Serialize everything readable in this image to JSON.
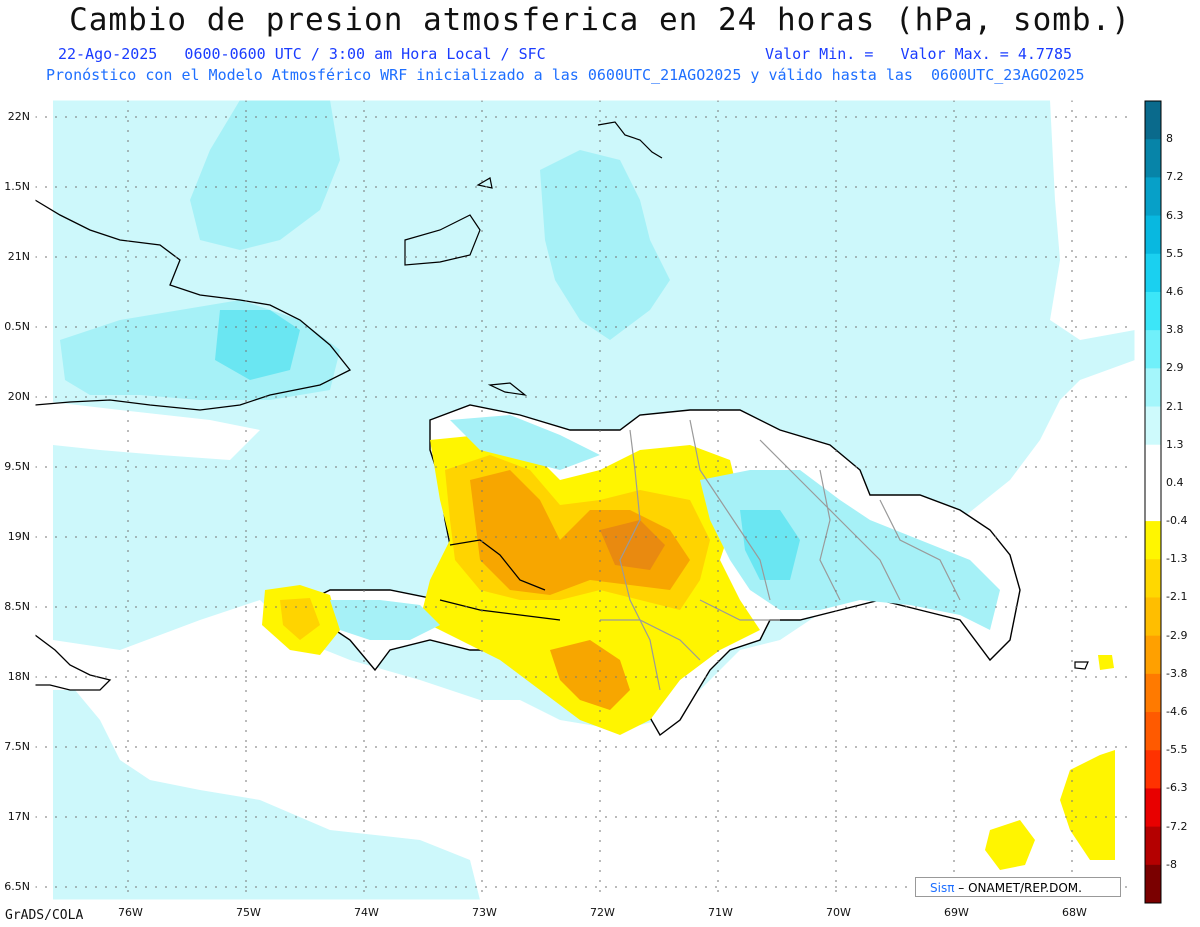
{
  "title": "Cambio de presion atmosferica en 24 horas (hPa, somb.)",
  "subtitle_line1": "22-Ago-2025   0600-0600 UTC / 3:00 am Hora Local / SFC",
  "subtitle_values": "Valor Min. =   Valor Max. = 4.7785",
  "subtitle_line2": "Pronóstico con el Modelo Atmosférico WRF inicializado a las 0600UTC_21AGO2025 y válido hasta las  0600UTC_23AGO2025",
  "lat_labels": [
    "22N",
    "1.5N",
    "21N",
    "0.5N",
    "20N",
    "9.5N",
    "19N",
    "8.5N",
    "18N",
    "7.5N",
    "17N",
    "6.5N"
  ],
  "lon_labels": [
    "76W",
    "75W",
    "74W",
    "73W",
    "72W",
    "71W",
    "70W",
    "69W",
    "68W"
  ],
  "colorbar": {
    "labels": [
      "8",
      "7.2",
      "6.3",
      "5.5",
      "4.6",
      "3.8",
      "2.9",
      "2.1",
      "1.3",
      "0.4",
      "-0.4",
      "-1.3",
      "-2.1",
      "-2.9",
      "-3.8",
      "-4.6",
      "-5.5",
      "-6.3",
      "-7.2",
      "-8"
    ],
    "colors": [
      "#0a6a8c",
      "#0784a8",
      "#07a0c8",
      "#08b8e0",
      "#1ad0f0",
      "#3ce6f8",
      "#70f0fa",
      "#a4f6fb",
      "#cefafc",
      "#ffffff",
      "#ffffff",
      "#fff600",
      "#ffd800",
      "#ffbe00",
      "#ffa000",
      "#ff7a00",
      "#ff5a00",
      "#ff3200",
      "#e80000",
      "#b40000",
      "#7a0000"
    ]
  },
  "colors": {
    "sea": "#cdf8fb",
    "land_neutral": "#ffffff",
    "light_blue": "#a6f1f7",
    "mid_blue": "#6ae6f2",
    "yellow": "#fff500",
    "gold": "#ffd400",
    "orange": "#f7a600",
    "dark_orange": "#e98a10"
  },
  "footer_left": "GrADS/COLA",
  "credit": {
    "brand": "Sisπ",
    "text": "– ONAMET/REP.DOM."
  }
}
